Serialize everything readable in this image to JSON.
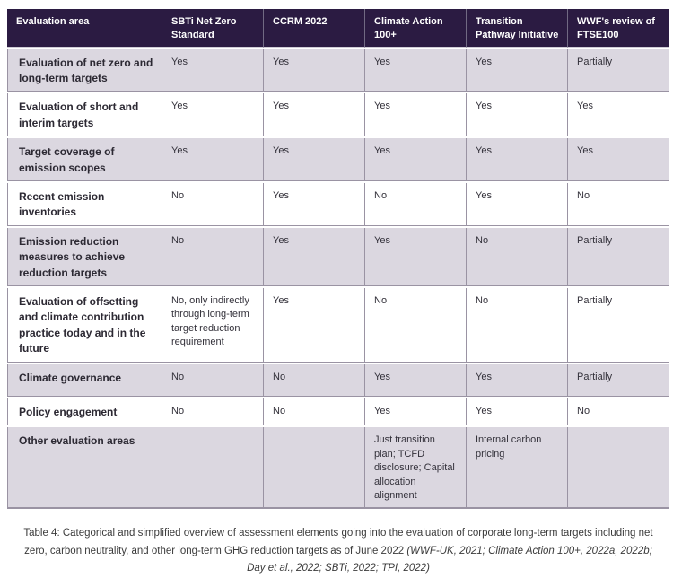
{
  "table": {
    "columns": [
      "Evaluation area",
      "SBTi Net Zero Standard",
      "CCRM 2022",
      "Climate Action 100+",
      "Transition Pathway Initiative",
      "WWF's review of FTSE100"
    ],
    "rows": [
      {
        "area": "Evaluation of net zero and long-term targets",
        "cells": [
          "Yes",
          "Yes",
          "Yes",
          "Yes",
          "Partially"
        ]
      },
      {
        "area": "Evaluation of short and interim targets",
        "cells": [
          "Yes",
          "Yes",
          "Yes",
          "Yes",
          "Yes"
        ]
      },
      {
        "area": "Target coverage of emission scopes",
        "cells": [
          "Yes",
          "Yes",
          "Yes",
          "Yes",
          "Yes"
        ]
      },
      {
        "area": "Recent emission inventories",
        "cells": [
          "No",
          "Yes",
          "No",
          "Yes",
          "No"
        ]
      },
      {
        "area": "Emission reduction measures to achieve reduction targets",
        "cells": [
          "No",
          "Yes",
          "Yes",
          "No",
          "Partially"
        ]
      },
      {
        "area": "Evaluation of offsetting and climate contribution practice today and in the future",
        "cells": [
          "No, only indirectly through long-term target reduction requirement",
          "Yes",
          "No",
          "No",
          "Partially"
        ]
      },
      {
        "area": "Climate governance",
        "cells": [
          "No",
          "No",
          "Yes",
          "Yes",
          "Partially"
        ]
      },
      {
        "area": "Policy engagement",
        "cells": [
          "No",
          "No",
          "Yes",
          "Yes",
          "No"
        ]
      },
      {
        "area": "Other evaluation areas",
        "cells": [
          "",
          "",
          "Just transition plan; TCFD disclosure; Capital allocation alignment",
          "Internal carbon pricing",
          ""
        ]
      }
    ]
  },
  "caption": {
    "text": "Table 4: Categorical and simplified overview of assessment elements going into the evaluation of corporate long-term targets including net zero, carbon neutrality, and other long-term GHG reduction targets as of June 2022 ",
    "citation": "(WWF-UK, 2021; Climate Action 100+, 2022a, 2022b; Day et al., 2022; SBTi, 2022; TPI, 2022)"
  },
  "colors": {
    "header_bg": "#2b1b42",
    "header_text": "#ffffff",
    "row_alt_bg": "#dbd7e0",
    "row_bg": "#ffffff",
    "border_color": "#9a93a3",
    "caption_text": "#3b3b3b"
  }
}
